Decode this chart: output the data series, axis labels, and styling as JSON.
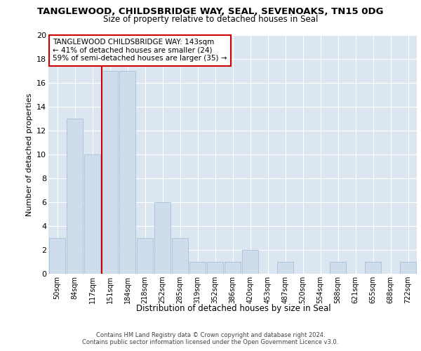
{
  "title1": "TANGLEWOOD, CHILDSBRIDGE WAY, SEAL, SEVENOAKS, TN15 0DG",
  "title2": "Size of property relative to detached houses in Seal",
  "xlabel": "Distribution of detached houses by size in Seal",
  "ylabel": "Number of detached properties",
  "categories": [
    "50sqm",
    "84sqm",
    "117sqm",
    "151sqm",
    "184sqm",
    "218sqm",
    "252sqm",
    "285sqm",
    "319sqm",
    "352sqm",
    "386sqm",
    "420sqm",
    "453sqm",
    "487sqm",
    "520sqm",
    "554sqm",
    "588sqm",
    "621sqm",
    "655sqm",
    "688sqm",
    "722sqm"
  ],
  "values": [
    3,
    13,
    10,
    17,
    17,
    3,
    6,
    3,
    1,
    1,
    1,
    2,
    0,
    1,
    0,
    0,
    1,
    0,
    1,
    0,
    1
  ],
  "bar_color": "#cfdcec",
  "bar_edgecolor": "#a8bfd4",
  "redline_index": 3,
  "annotation_line1": "TANGLEWOOD CHILDSBRIDGE WAY: 143sqm",
  "annotation_line2": "← 41% of detached houses are smaller (24)",
  "annotation_line3": "59% of semi-detached houses are larger (35) →",
  "annotation_box_color": "#ffffff",
  "annotation_box_edgecolor": "#cc0000",
  "ylim": [
    0,
    20
  ],
  "yticks": [
    0,
    2,
    4,
    6,
    8,
    10,
    12,
    14,
    16,
    18,
    20
  ],
  "background_color": "#dce6f0",
  "grid_color": "#ffffff",
  "fig_bgcolor": "#ffffff",
  "footer_line1": "Contains HM Land Registry data © Crown copyright and database right 2024.",
  "footer_line2": "Contains public sector information licensed under the Open Government Licence v3.0."
}
